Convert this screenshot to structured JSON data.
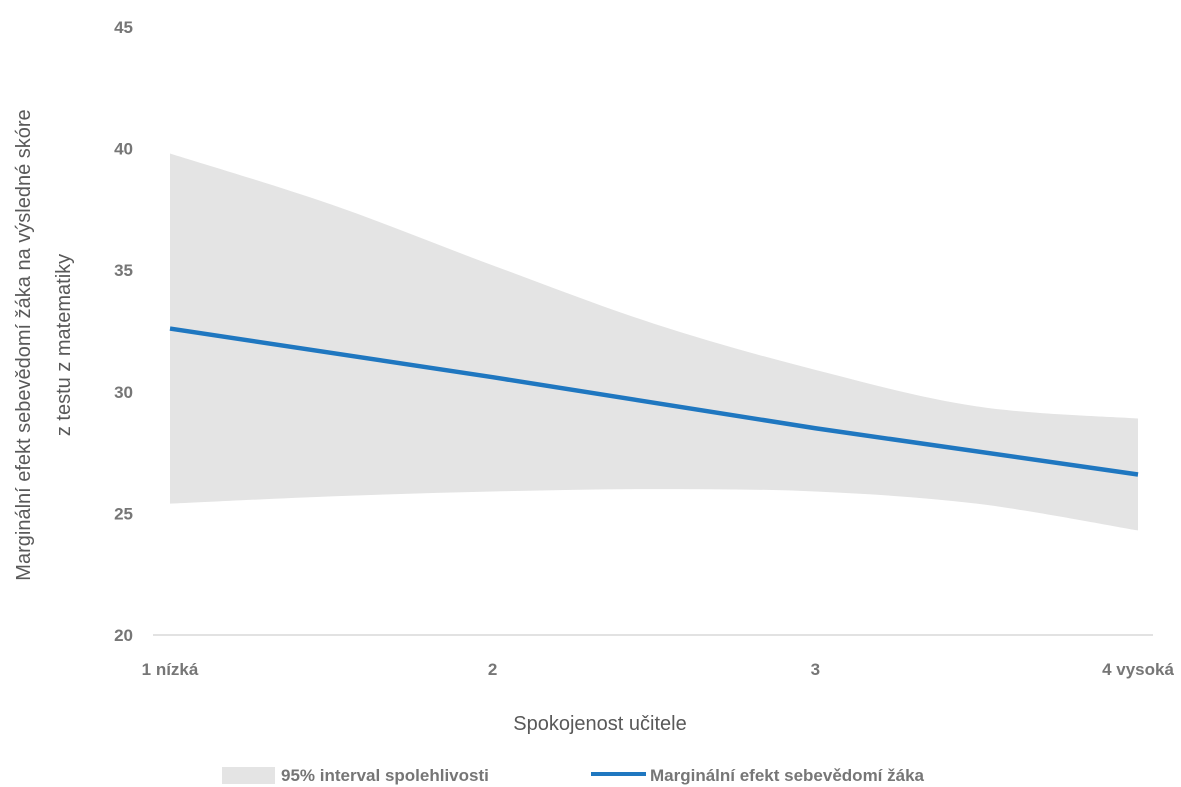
{
  "chart_data": {
    "type": "line",
    "title": "",
    "xlabel": "Spokojenost učitele",
    "ylabel_line1": "Marginální efekt sebevědomí žáka na výsledné skóre",
    "ylabel_line2": "z testu z matematiky",
    "categories": [
      "1 nízká",
      "2",
      "3",
      "4 vysoká"
    ],
    "x": [
      1,
      2,
      3,
      4
    ],
    "ylim": [
      20,
      45
    ],
    "yticks": [
      "20",
      "25",
      "30",
      "35",
      "40",
      "45"
    ],
    "grid": false,
    "legend_position": "bottom",
    "series": [
      {
        "name": "Marginální efekt sebevědomí žáka",
        "type": "line",
        "color": "#1f77c0",
        "values": [
          32.6,
          30.6,
          28.5,
          26.6
        ]
      },
      {
        "name": "95% interval spolehlivosti",
        "type": "band",
        "color": "#e4e4e4",
        "upper": [
          {
            "x": 1.0,
            "y": 39.8
          },
          {
            "x": 1.5,
            "y": 37.7
          },
          {
            "x": 2.0,
            "y": 35.2
          },
          {
            "x": 2.5,
            "y": 32.8
          },
          {
            "x": 3.0,
            "y": 30.9
          },
          {
            "x": 3.5,
            "y": 29.4
          },
          {
            "x": 4.0,
            "y": 28.9
          }
        ],
        "lower": [
          {
            "x": 1.0,
            "y": 25.4
          },
          {
            "x": 1.5,
            "y": 25.7
          },
          {
            "x": 2.0,
            "y": 25.9
          },
          {
            "x": 2.5,
            "y": 26.0
          },
          {
            "x": 3.0,
            "y": 25.9
          },
          {
            "x": 3.5,
            "y": 25.4
          },
          {
            "x": 4.0,
            "y": 24.3
          }
        ]
      }
    ],
    "legend": {
      "band_label": "95% interval spolehlivosti",
      "line_label": "Marginální efekt sebevědomí žáka"
    }
  }
}
